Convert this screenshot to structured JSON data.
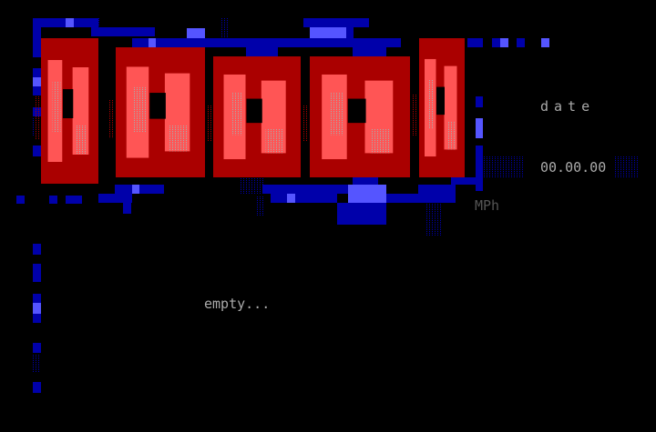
{
  "logo": {
    "description_colors": {
      "frame": "#0000aa",
      "frame_light": "#5555ff",
      "letter_dark": "#aa0000",
      "letter_light": "#ff5555",
      "shade": "#aaaaaa"
    }
  },
  "info": {
    "date_label": "date",
    "date_value": "00.00.00",
    "speed_unit": "MPh"
  },
  "main": {
    "status": "empty..."
  }
}
